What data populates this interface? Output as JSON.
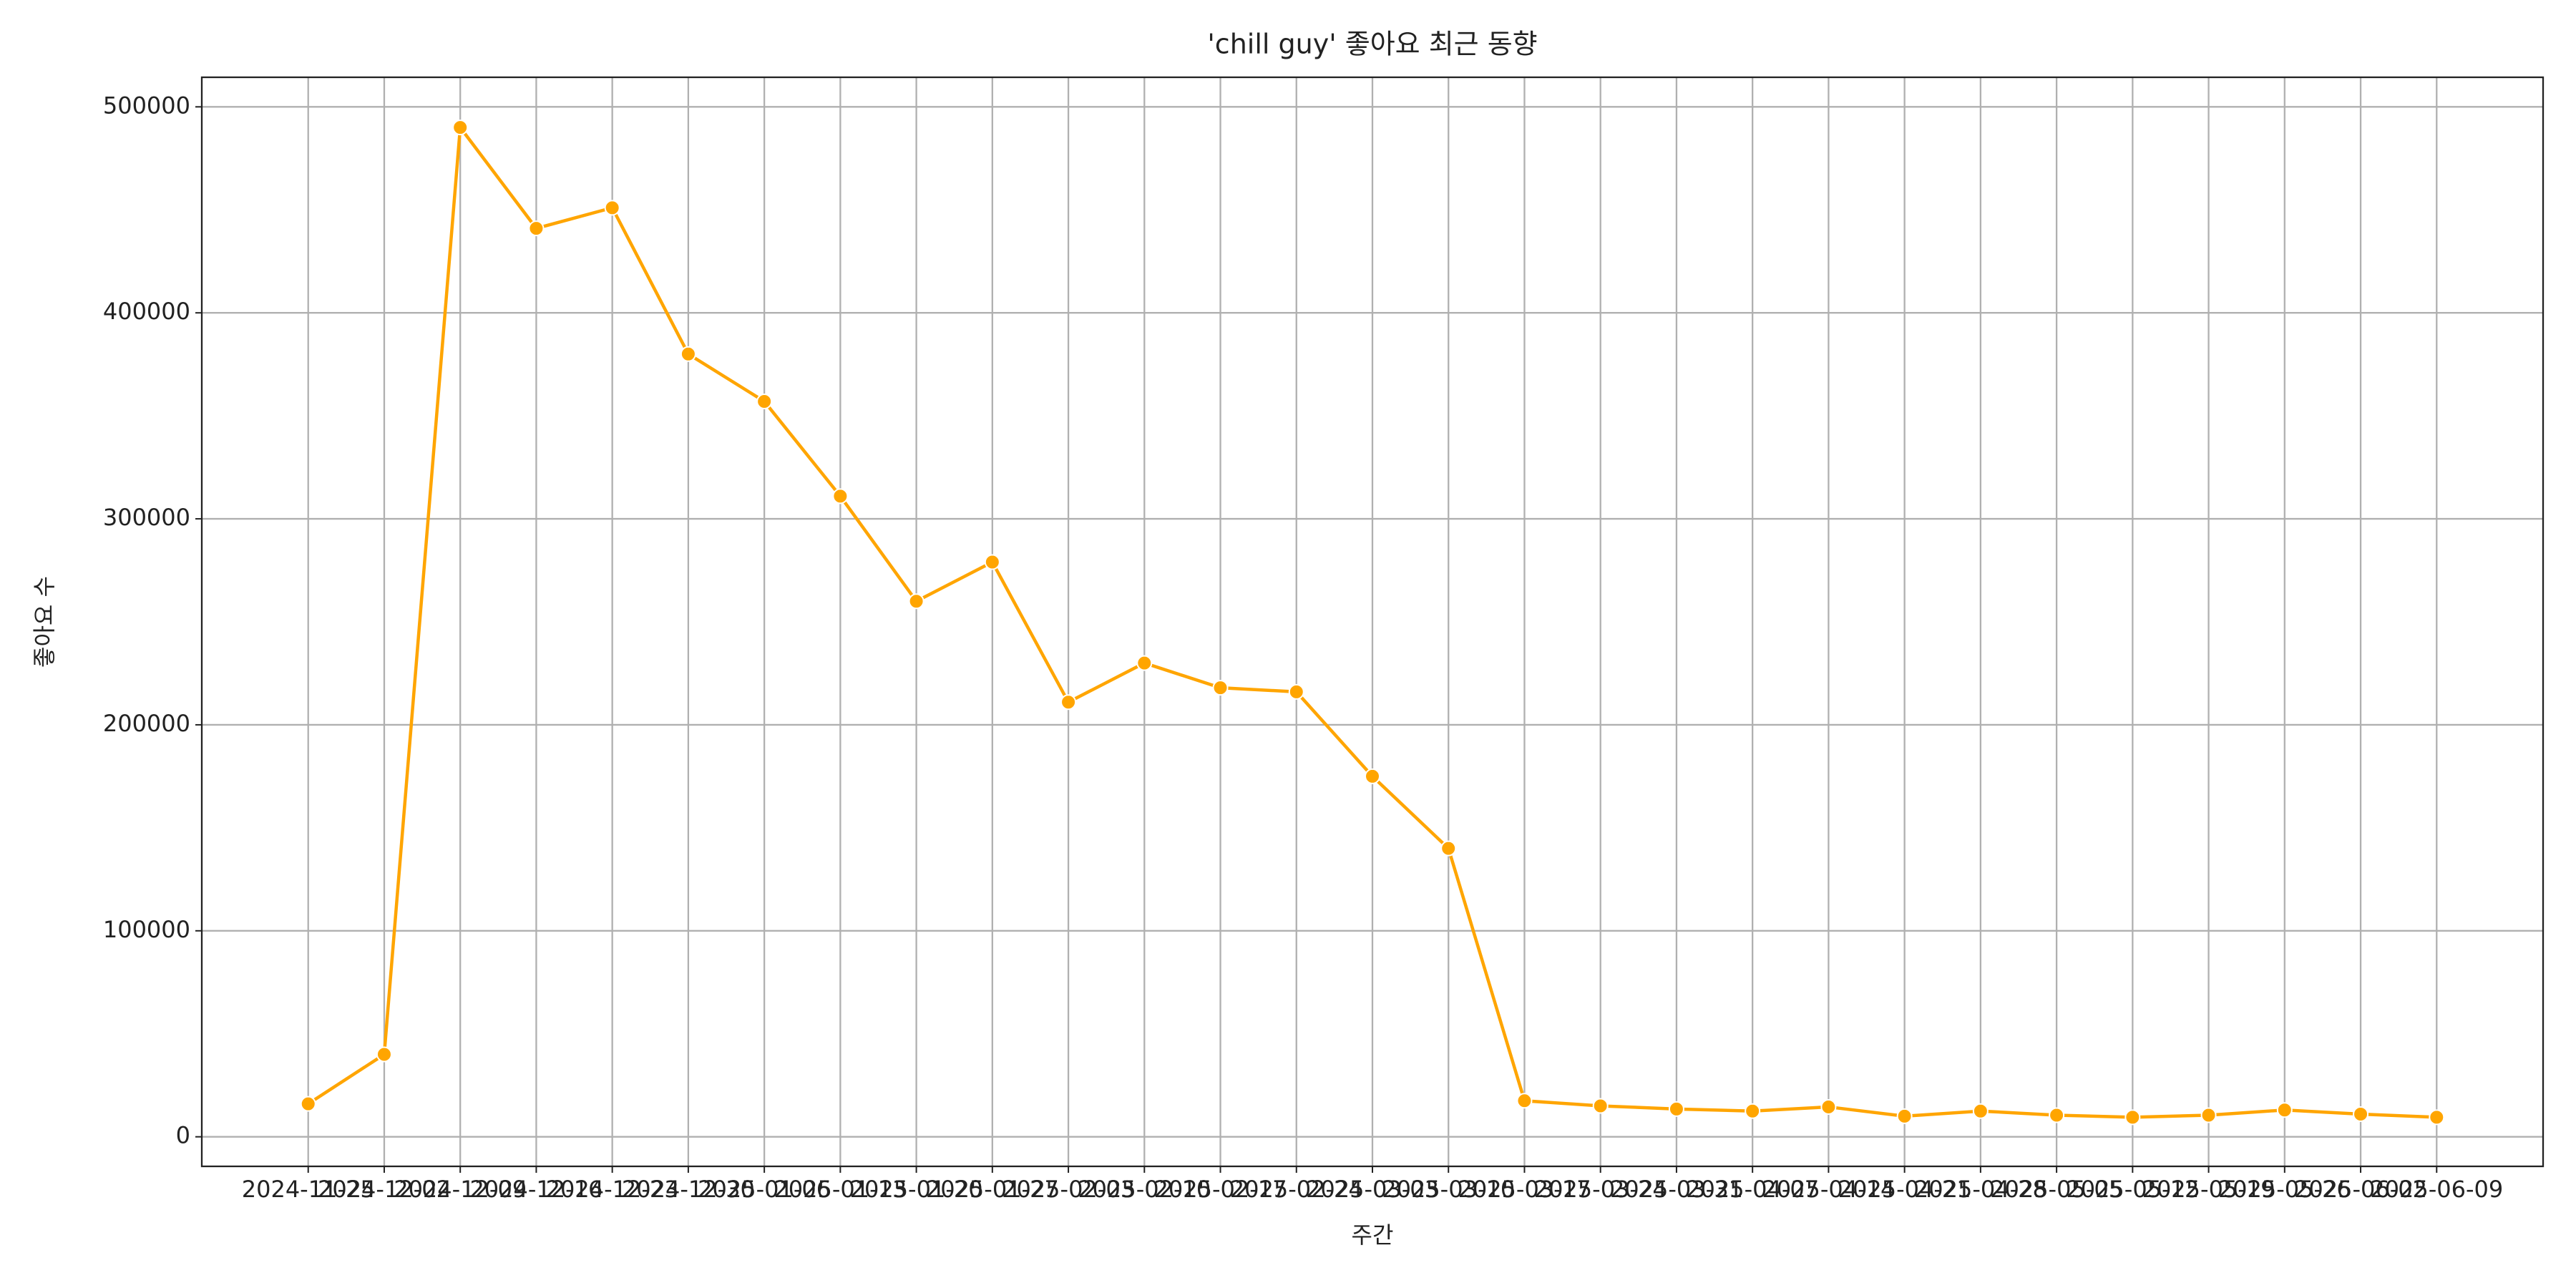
{
  "chart_data": {
    "type": "line",
    "title": "'chill guy' 좋아요 최근 동향",
    "xlabel": "주간",
    "ylabel": "좋아요 수",
    "categories": [
      "2024-11-25",
      "2024-12-02",
      "2024-12-09",
      "2024-12-16",
      "2024-12-23",
      "2024-12-30",
      "2025-01-06",
      "2025-01-13",
      "2025-01-20",
      "2025-01-27",
      "2025-02-03",
      "2025-02-10",
      "2025-02-17",
      "2025-02-24",
      "2025-03-03",
      "2025-03-10",
      "2025-03-17",
      "2025-03-24",
      "2025-03-31",
      "2025-04-07",
      "2025-04-14",
      "2025-04-21",
      "2025-04-28",
      "2025-05-05",
      "2025-05-12",
      "2025-05-19",
      "2025-05-26",
      "2025-06-02",
      "2025-06-09"
    ],
    "series": [
      {
        "name": "좋아요 수",
        "color": "#ffa500",
        "values": [
          16000,
          40000,
          490000,
          441000,
          451000,
          380000,
          357000,
          311000,
          260000,
          279000,
          211000,
          230000,
          218000,
          216000,
          175000,
          140000,
          17500,
          15000,
          13500,
          12500,
          14500,
          10000,
          12500,
          10500,
          9500,
          10500,
          13000,
          11000,
          9500
        ]
      }
    ],
    "ylim": [
      -14350,
      514350
    ],
    "yticks": [
      0,
      100000,
      200000,
      300000,
      400000,
      500000
    ],
    "grid": true
  }
}
